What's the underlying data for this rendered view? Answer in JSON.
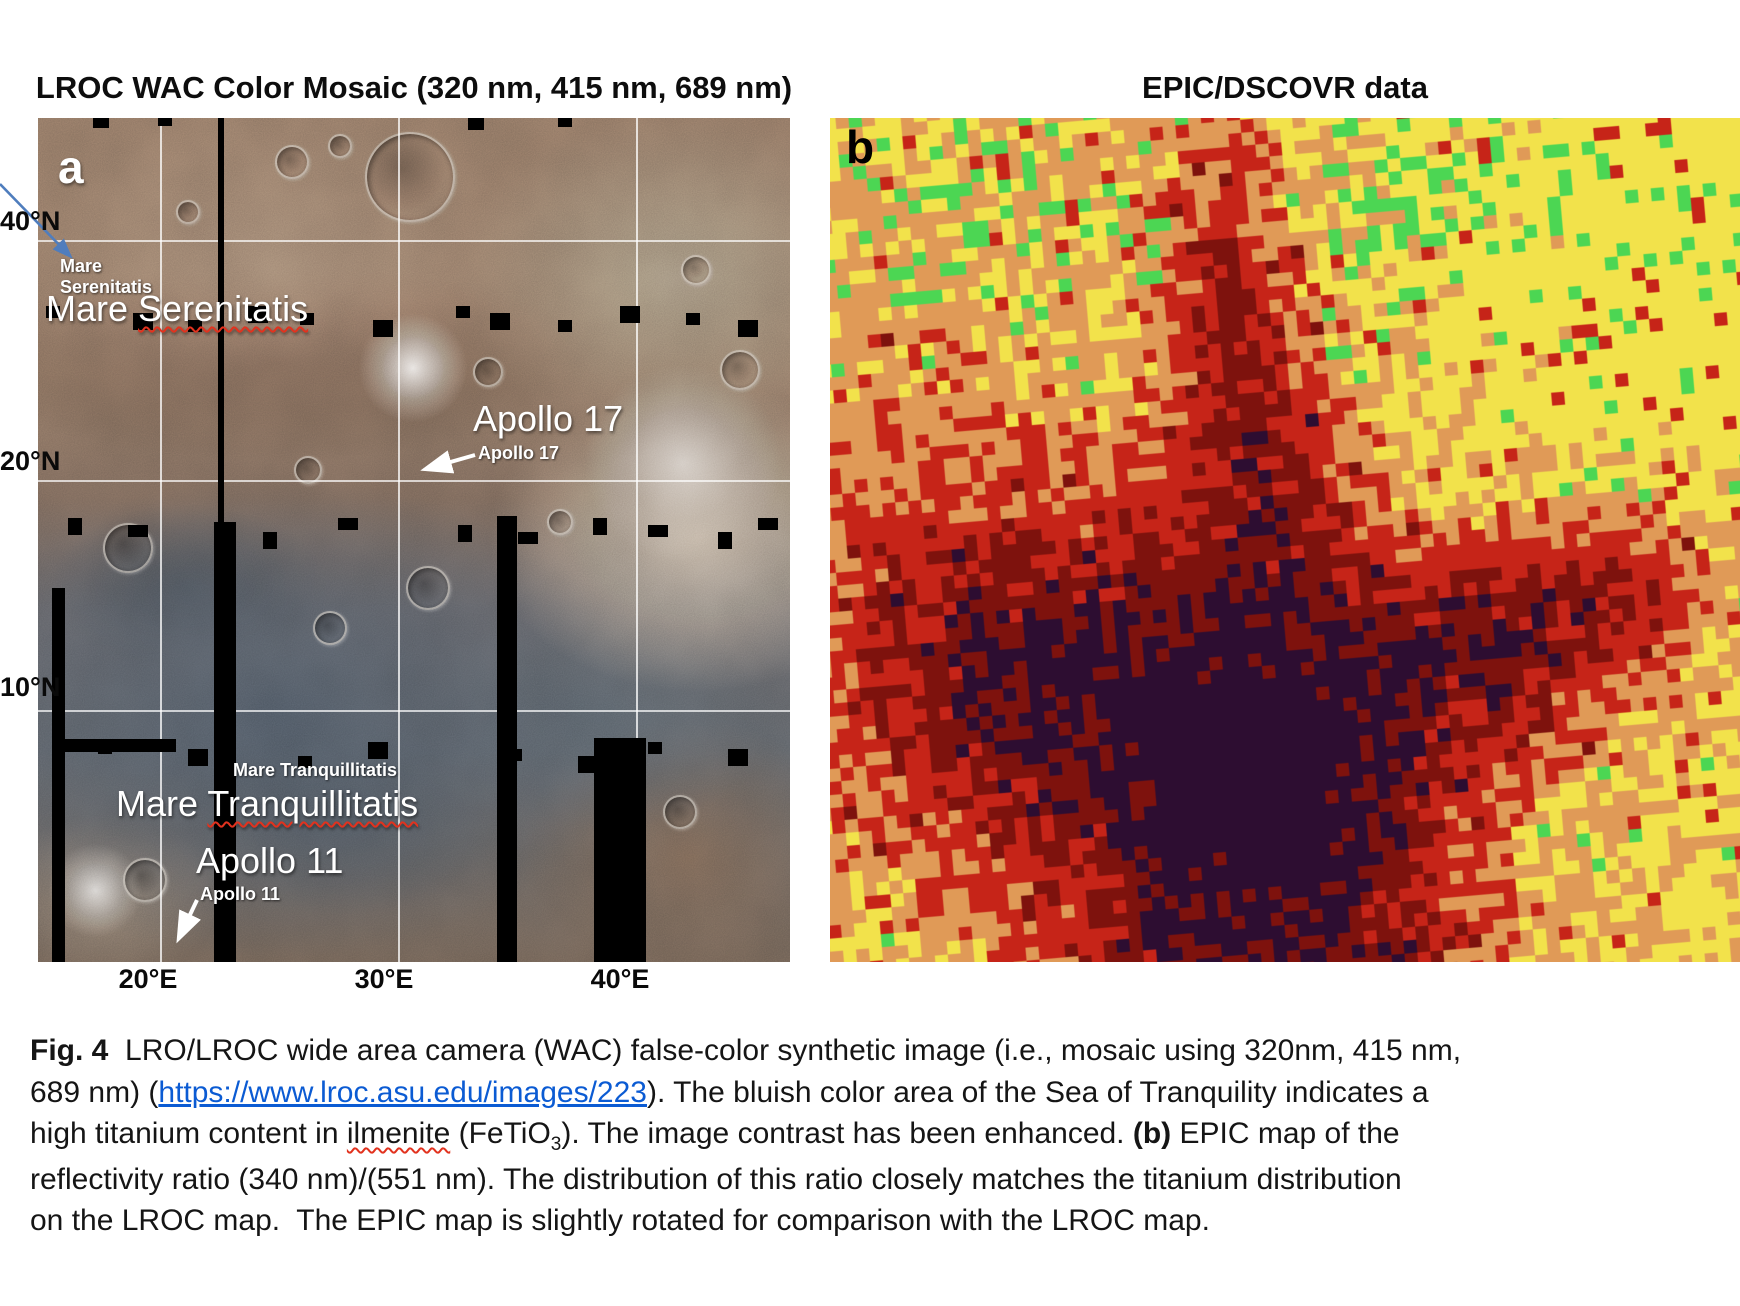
{
  "panel_a": {
    "title": "LROC WAC Color Mosaic (320 nm, 415 nm, 689 nm)",
    "letter": "a",
    "labels": {
      "mare_serenitatis_small_line1": "Mare",
      "mare_serenitatis_small_line2": "Serenitatis",
      "mare_serenitatis_big_word1": "Mare ",
      "mare_serenitatis_big_word2": "Serenitatis",
      "apollo17_big": "Apollo 17",
      "apollo17_small": "Apollo 17",
      "mare_tranquillitatis_small": "Mare Tranquillitatis",
      "mare_tranquillitatis_big_word1": "Mare ",
      "mare_tranquillitatis_big_word2": "Tranquillitatis",
      "apollo11_big": "Apollo 11",
      "apollo11_small": "Apollo 11"
    },
    "axes": {
      "lat": [
        "40°N",
        "20°N",
        "10°N"
      ],
      "lon": [
        "20°E",
        "30°E",
        "40°E"
      ]
    }
  },
  "panel_b": {
    "title": "EPIC/DSCOVR data",
    "letter": "b",
    "palette": {
      "yellow": "#f2e24b",
      "orange": "#e09a57",
      "red": "#c62418",
      "dark_red": "#7e120d",
      "dark_purple": "#2d0d31",
      "green": "#4cd653"
    }
  },
  "caption": {
    "lines": [
      [
        {
          "t": "Fig. 4",
          "s": "b"
        },
        {
          "t": "  LRO/LROC wide area camera (WAC) false-color synthetic image (i.e., mosaic using 320nm, 415 nm,",
          "s": ""
        }
      ],
      [
        {
          "t": "689 nm) (",
          "s": ""
        },
        {
          "t": "https://www.lroc.asu.edu/images/223",
          "s": "link"
        },
        {
          "t": "). The bluish color area of the Sea of Tranquility indicates a",
          "s": ""
        }
      ],
      [
        {
          "t": "high titanium content in ",
          "s": ""
        },
        {
          "t": "ilmenite",
          "s": "wavy"
        },
        {
          "t": " (FeTiO",
          "s": ""
        },
        {
          "t": "3",
          "s": "sub"
        },
        {
          "t": "). The image contrast has been enhanced. ",
          "s": ""
        },
        {
          "t": "(b)",
          "s": "b"
        },
        {
          "t": " EPIC map of the",
          "s": ""
        }
      ],
      [
        {
          "t": "reflectivity ratio (340 nm)/(551 nm). The distribution of this ratio closely matches the titanium distribution",
          "s": ""
        }
      ],
      [
        {
          "t": "on the LROC map.  The EPIC map is slightly rotated for comparison with the LROC map.",
          "s": ""
        }
      ]
    ]
  },
  "colors": {
    "link_blue": "#0b5bd3",
    "spellcheck_red": "#e2321e",
    "pointer_arrow_blue": "#4f7dbd",
    "map_arrow_white": "#ffffff"
  }
}
